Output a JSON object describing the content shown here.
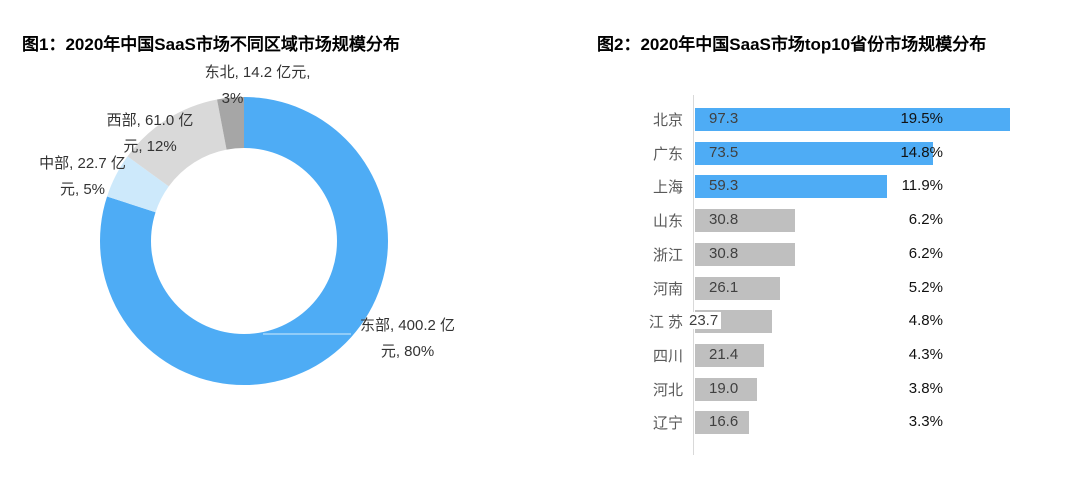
{
  "figure1": {
    "title": "图1：2020年中国SaaS市场不同区域市场规模分布"
  },
  "figure2": {
    "title": "图2：2020年中国SaaS市场top10省份市场规模分布"
  },
  "colors": {
    "accent_blue": "#4EACF5",
    "light_blue": "#CDE9FB",
    "light_gray": "#D9D9D9",
    "dark_gray": "#A6A6A6",
    "bar_gray": "#BFBFBF",
    "axis_gray": "#D9D9D9"
  },
  "chart_data": [
    {
      "type": "pie",
      "donut": true,
      "title": "图1：2020年中国SaaS市场不同区域市场规模分布",
      "unit": "亿元",
      "start_angle_deg": 0,
      "direction": "clockwise",
      "slices": [
        {
          "name": "east",
          "label": "东部",
          "value": 400.2,
          "pct": 80,
          "color": "#4EACF5",
          "data_label": {
            "0": "东部, 400.2 亿",
            "1": "元, 80%"
          }
        },
        {
          "name": "central",
          "label": "中部",
          "value": 22.7,
          "pct": 5,
          "color": "#CDE9FB",
          "data_label": {
            "0": "中部, 22.7 亿",
            "1": "元, 5%"
          }
        },
        {
          "name": "west",
          "label": "西部",
          "value": 61.0,
          "pct": 12,
          "color": "#D9D9D9",
          "data_label": {
            "0": "西部, 61.0 亿",
            "1": "元, 12%"
          }
        },
        {
          "name": "northeast",
          "label": "东北",
          "value": 14.2,
          "pct": 3,
          "color": "#A6A6A6",
          "data_label": {
            "0": "东北, 14.2 亿元,",
            "1": "3%"
          }
        }
      ]
    },
    {
      "type": "bar",
      "orientation": "horizontal",
      "title": "图2：2020年中国SaaS市场top10省份市场规模分布",
      "unit": "亿元",
      "xlim": [
        0,
        100
      ],
      "categories": [
        "北京",
        "广东",
        "上海",
        "山东",
        "浙江",
        "河南",
        "江 苏",
        "四川",
        "河北",
        "辽宁"
      ],
      "values": [
        97.3,
        73.5,
        59.3,
        30.8,
        30.8,
        26.1,
        23.7,
        21.4,
        19.0,
        16.6
      ],
      "percents": [
        "19.5%",
        "14.8%",
        "11.9%",
        "6.2%",
        "6.2%",
        "5.2%",
        "4.8%",
        "4.3%",
        "3.8%",
        "3.3%"
      ],
      "bar_colors": [
        "#4EACF5",
        "#4EACF5",
        "#4EACF5",
        "#BFBFBF",
        "#BFBFBF",
        "#BFBFBF",
        "#BFBFBF",
        "#BFBFBF",
        "#BFBFBF",
        "#BFBFBF"
      ],
      "value_label_position": [
        "inside",
        "inside",
        "inside",
        "inside",
        "inside",
        "inside",
        "base-overlap",
        "inside",
        "inside",
        "inside"
      ]
    }
  ]
}
